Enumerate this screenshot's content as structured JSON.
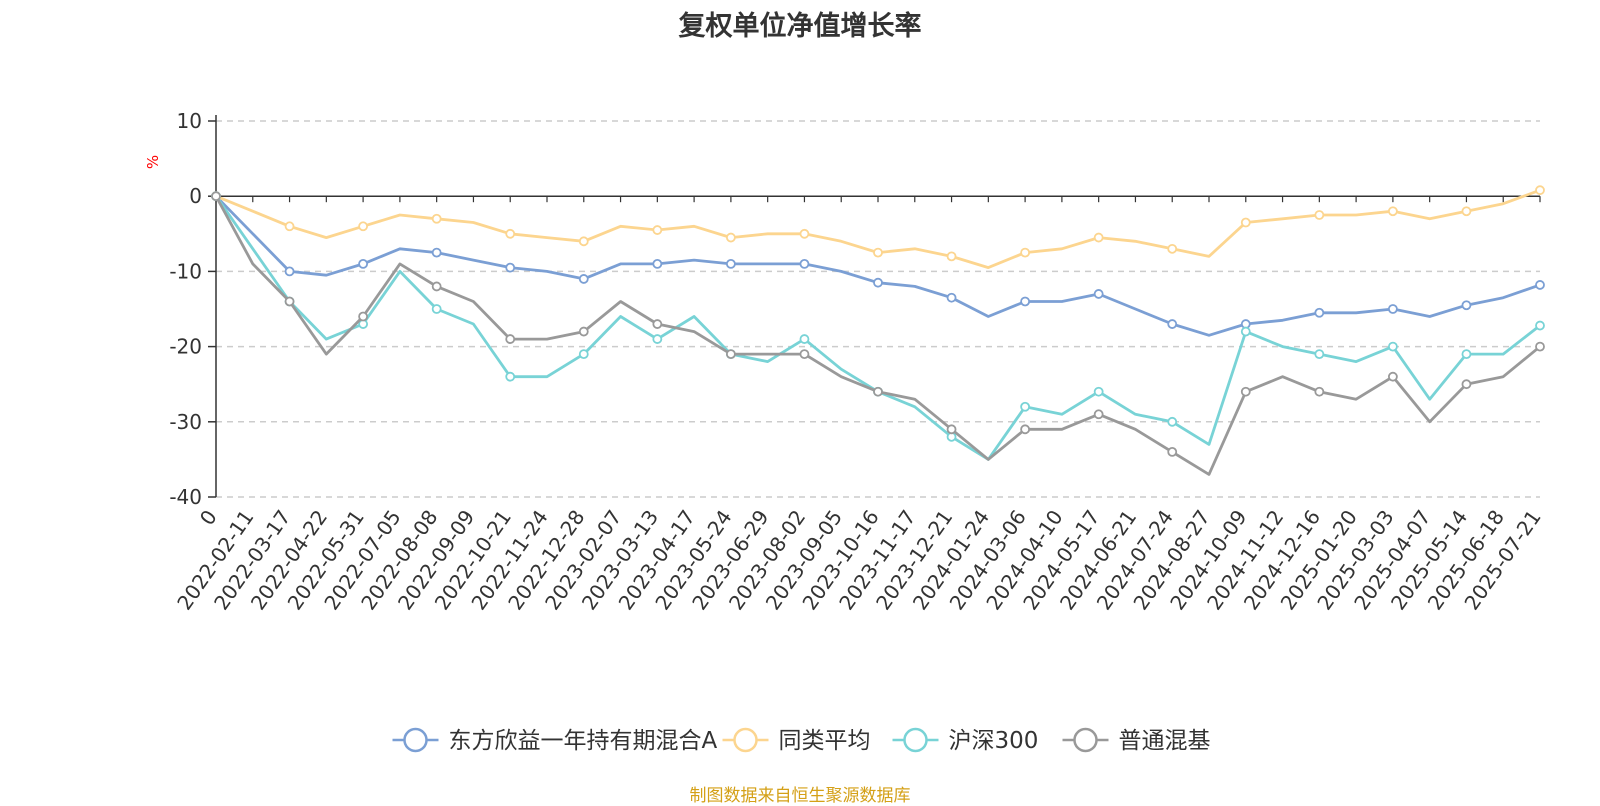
{
  "source_note": "制图数据来自恒生聚源数据库",
  "chart_data": {
    "type": "line",
    "title": "复权单位净值增长率",
    "ylabel": "%",
    "xlabel": "",
    "ylim": [
      -40,
      10
    ],
    "yticks": [
      10,
      0,
      -10,
      -20,
      -30,
      -40
    ],
    "grid": true,
    "legend_position": "bottom",
    "x": [
      "0",
      "2022-02-11",
      "2022-03-17",
      "2022-04-22",
      "2022-05-31",
      "2022-07-05",
      "2022-08-08",
      "2022-09-09",
      "2022-10-21",
      "2022-11-24",
      "2022-12-28",
      "2023-02-07",
      "2023-03-13",
      "2023-04-17",
      "2023-05-24",
      "2023-06-29",
      "2023-08-02",
      "2023-09-05",
      "2023-10-16",
      "2023-11-17",
      "2023-12-21",
      "2024-01-24",
      "2024-03-06",
      "2024-04-10",
      "2024-05-17",
      "2024-06-21",
      "2024-07-24",
      "2024-08-27",
      "2024-10-09",
      "2024-11-12",
      "2024-12-16",
      "2025-01-20",
      "2025-03-03",
      "2025-04-07",
      "2025-05-14",
      "2025-06-18",
      "2025-07-21"
    ],
    "series": [
      {
        "name": "东方欣益一年持有期混合A",
        "color": "#7b9fd4",
        "values": [
          0,
          -5,
          -10,
          -10.5,
          -9,
          -7,
          -7.5,
          -8.5,
          -9.5,
          -10,
          -11,
          -9,
          -9,
          -8.5,
          -9,
          -9,
          -9,
          -10,
          -11.5,
          -12,
          -13.5,
          -16,
          -14,
          -14,
          -13,
          -15,
          -17,
          -18.5,
          -17,
          -16.5,
          -15.5,
          -15.5,
          -15,
          -16,
          -14.5,
          -13.5,
          -11.8
        ]
      },
      {
        "name": "同类平均",
        "color": "#fcd58f",
        "values": [
          0,
          -2,
          -4,
          -5.5,
          -4,
          -2.5,
          -3,
          -3.5,
          -5,
          -5.5,
          -6,
          -4,
          -4.5,
          -4,
          -5.5,
          -5,
          -5,
          -6,
          -7.5,
          -7,
          -8,
          -9.5,
          -7.5,
          -7,
          -5.5,
          -6,
          -7,
          -8,
          -3.5,
          -3,
          -2.5,
          -2.5,
          -2,
          -3,
          -2,
          -1,
          0.8
        ]
      },
      {
        "name": "沪深300",
        "color": "#78d3d6",
        "values": [
          0,
          -7,
          -14,
          -19,
          -17,
          -10,
          -15,
          -17,
          -24,
          -24,
          -21,
          -16,
          -19,
          -16,
          -21,
          -22,
          -19,
          -23,
          -26,
          -28,
          -32,
          -35,
          -28,
          -29,
          -26,
          -29,
          -30,
          -33,
          -18,
          -20,
          -21,
          -22,
          -20,
          -27,
          -21,
          -21,
          -17.2
        ]
      },
      {
        "name": "普通混基",
        "color": "#999999",
        "values": [
          0,
          -9,
          -14,
          -21,
          -16,
          -9,
          -12,
          -14,
          -19,
          -19,
          -18,
          -14,
          -17,
          -18,
          -21,
          -21,
          -21,
          -24,
          -26,
          -27,
          -31,
          -35,
          -31,
          -31,
          -29,
          -31,
          -34,
          -37,
          -26,
          -24,
          -26,
          -27,
          -24,
          -30,
          -25,
          -24,
          -20
        ]
      }
    ]
  }
}
